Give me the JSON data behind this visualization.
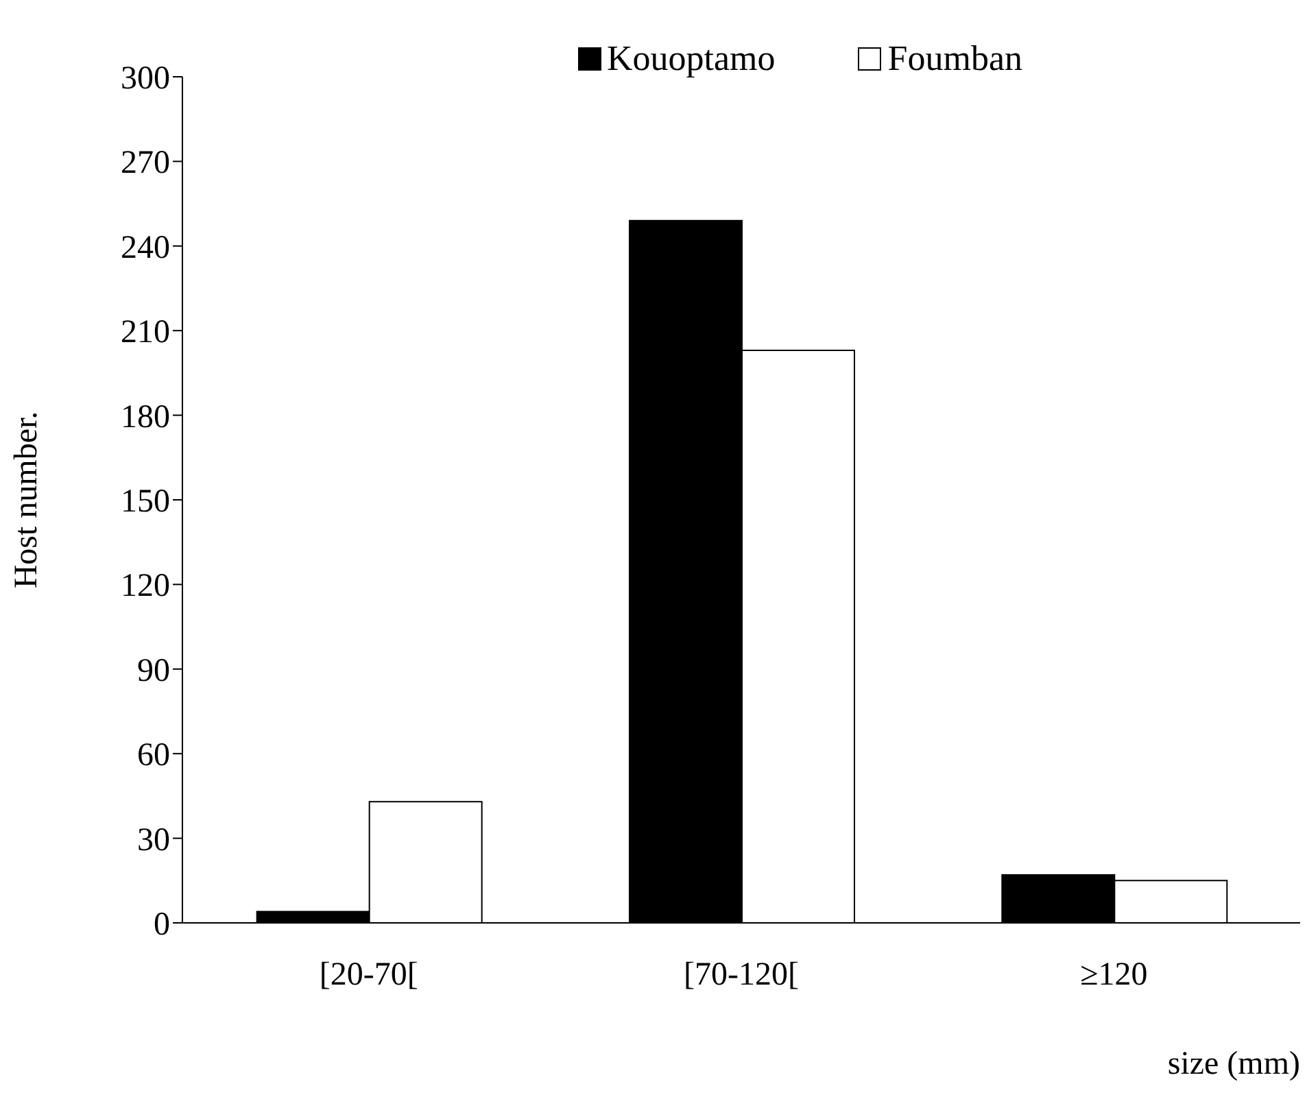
{
  "chart_data": {
    "type": "bar",
    "xlabel": "size (mm)",
    "ylabel": "Host number.",
    "categories": [
      "[20-70[",
      "[70-120[",
      "≥120"
    ],
    "series": [
      {
        "name": "Kouoptamo",
        "color": "#000000",
        "values": [
          4,
          249,
          17
        ]
      },
      {
        "name": "Foumban",
        "color": "#ffffff",
        "values": [
          43,
          203,
          15
        ]
      }
    ],
    "ylim": [
      0,
      300
    ],
    "yticks": [
      0,
      30,
      60,
      90,
      120,
      150,
      180,
      210,
      240,
      270,
      300
    ],
    "grid": false,
    "legend": "top"
  }
}
